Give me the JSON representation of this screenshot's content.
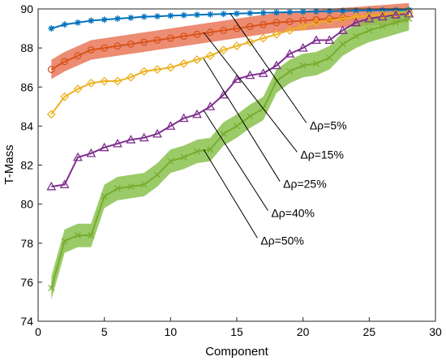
{
  "chart_data": {
    "type": "line",
    "title": "",
    "xlabel": "Component",
    "ylabel": "T-Mass",
    "xlim": [
      0,
      30
    ],
    "ylim": [
      74,
      90
    ],
    "xticks": [
      0,
      5,
      10,
      15,
      20,
      25,
      30
    ],
    "yticks": [
      74,
      76,
      78,
      80,
      82,
      84,
      86,
      88,
      90
    ],
    "grid": false,
    "x": [
      1,
      2,
      3,
      4,
      5,
      6,
      7,
      8,
      9,
      10,
      11,
      12,
      13,
      14,
      15,
      16,
      17,
      18,
      19,
      20,
      21,
      22,
      23,
      24,
      25,
      26,
      27,
      28
    ],
    "series": [
      {
        "name": "Δρ=5%",
        "color": "#0072BD",
        "marker": "asterisk",
        "values": [
          89.0,
          89.2,
          89.3,
          89.4,
          89.45,
          89.5,
          89.55,
          89.6,
          89.62,
          89.65,
          89.68,
          89.7,
          89.72,
          89.74,
          89.76,
          89.78,
          89.8,
          89.82,
          89.84,
          89.86,
          89.87,
          89.88,
          89.9,
          89.91,
          89.92,
          89.93,
          89.94,
          89.95
        ],
        "band_halfwidth": 0.1
      },
      {
        "name": "Δρ=15%",
        "color": "#D95319",
        "band_color": "#E8785A",
        "marker": "circle",
        "values": [
          86.9,
          87.3,
          87.6,
          87.9,
          88.0,
          88.1,
          88.2,
          88.3,
          88.4,
          88.5,
          88.6,
          88.7,
          88.8,
          88.9,
          89.0,
          89.1,
          89.2,
          89.3,
          89.35,
          89.4,
          89.45,
          89.5,
          89.55,
          89.6,
          89.65,
          89.7,
          89.75,
          89.8
        ],
        "band_halfwidth": 0.5
      },
      {
        "name": "Δρ=25%",
        "color": "#EDB120",
        "marker": "diamond",
        "values": [
          84.6,
          85.5,
          85.9,
          86.2,
          86.3,
          86.3,
          86.5,
          86.8,
          86.9,
          87.0,
          87.2,
          87.4,
          87.6,
          87.9,
          88.1,
          88.3,
          88.5,
          88.7,
          88.9,
          89.1,
          89.3,
          89.4,
          89.5,
          89.6,
          89.65,
          89.7,
          89.75,
          89.8
        ],
        "band_halfwidth": 0.1
      },
      {
        "name": "Δρ=40%",
        "color": "#7E2F8E",
        "marker": "triangle",
        "values": [
          80.9,
          81.0,
          82.4,
          82.6,
          82.9,
          83.1,
          83.3,
          83.4,
          83.6,
          84.0,
          84.4,
          84.6,
          85.0,
          85.6,
          86.4,
          86.6,
          86.7,
          87.1,
          87.7,
          88.0,
          88.4,
          88.4,
          88.9,
          89.3,
          89.5,
          89.6,
          89.7,
          89.75
        ],
        "band_halfwidth": 0.1
      },
      {
        "name": "Δρ=50%",
        "color": "#77AC30",
        "band_color": "#88C24E",
        "marker": "x",
        "values": [
          75.7,
          78.1,
          78.4,
          78.4,
          80.4,
          80.8,
          80.9,
          81.0,
          81.5,
          82.2,
          82.4,
          82.7,
          82.8,
          83.6,
          84.0,
          84.5,
          84.9,
          86.3,
          86.8,
          87.1,
          87.2,
          87.5,
          88.2,
          88.6,
          88.9,
          89.1,
          89.3,
          89.5
        ],
        "band_halfwidth": 0.6
      }
    ],
    "annotations": [
      {
        "text": "Δρ=5%",
        "series": "Δρ=5%",
        "point_x": 14.5,
        "point_y": 89.77,
        "label_x": 20.5,
        "label_y": 84.0
      },
      {
        "text": "Δρ=15%",
        "series": "Δρ=15%",
        "point_x": 12.5,
        "point_y": 88.8,
        "label_x": 19.8,
        "label_y": 82.5
      },
      {
        "text": "Δρ=25%",
        "series": "Δρ=25%",
        "point_x": 12.5,
        "point_y": 87.45,
        "label_x": 18.5,
        "label_y": 81.0
      },
      {
        "text": "Δρ=40%",
        "series": "Δρ=40%",
        "point_x": 12.5,
        "point_y": 84.8,
        "label_x": 17.6,
        "label_y": 79.5
      },
      {
        "text": "Δρ=50%",
        "series": "Δρ=50%",
        "point_x": 12.5,
        "point_y": 82.8,
        "label_x": 16.8,
        "label_y": 78.1
      }
    ]
  }
}
